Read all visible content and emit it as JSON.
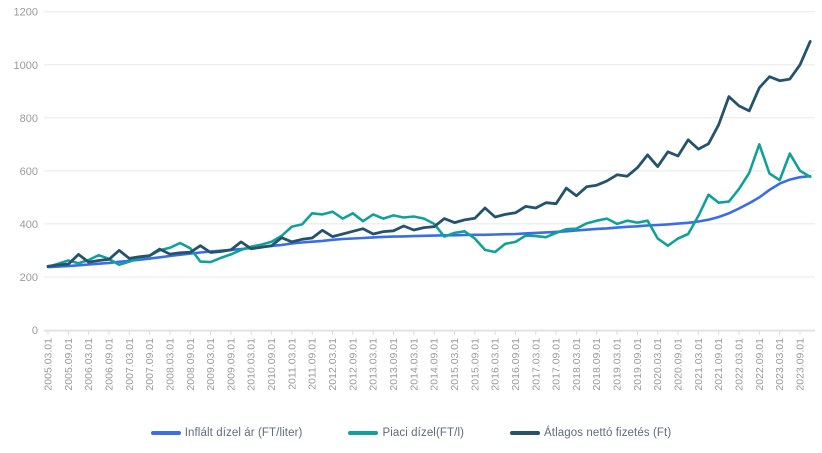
{
  "chart_data": {
    "type": "line",
    "title": "",
    "xlabel": "",
    "ylabel": "",
    "ylim": [
      0,
      1200
    ],
    "y_ticks": [
      0,
      200,
      400,
      600,
      800,
      1000,
      1200
    ],
    "grid": "horizontal",
    "legend_position": "bottom",
    "x_start": "2005.03.01",
    "x_step_months": 3,
    "x_tick_labels": [
      "2005.03.01",
      "2005.09.01",
      "2006.03.01",
      "2006.09.01",
      "2007.03.01",
      "2007.09.01",
      "2008.03.01",
      "2008.09.01",
      "2009.03.01",
      "2009.09.01",
      "2010.03.01",
      "2010.09.01",
      "2011.03.01",
      "2011.09.01",
      "2012.03.01",
      "2012.09.01",
      "2013.03.01",
      "2013.09.01",
      "2014.03.01",
      "2014.09.01",
      "2015.03.01",
      "2015.09.01",
      "2016.03.01",
      "2016.09.01",
      "2017.03.01",
      "2017.09.01",
      "2018.03.01",
      "2018.09.01",
      "2019.03.01",
      "2019.09.01",
      "2020.03.01",
      "2020.09.01",
      "2021.03.01",
      "2021.09.01",
      "2022.03.01",
      "2022.09.01",
      "2023.03.01",
      "2023.09.01"
    ],
    "series": [
      {
        "name": "Inflált dízel ár (FT/liter)",
        "color": "#3a6de6",
        "stroke_width": 2.6,
        "values": [
          237,
          239,
          241,
          244,
          247,
          250,
          253,
          257,
          261,
          265,
          269,
          274,
          279,
          284,
          288,
          292,
          296,
          299,
          302,
          305,
          309,
          313,
          317,
          321,
          326,
          330,
          333,
          336,
          340,
          343,
          345,
          347,
          349,
          351,
          352,
          353,
          354,
          355,
          356,
          357,
          357,
          358,
          359,
          359,
          360,
          361,
          362,
          364,
          366,
          368,
          370,
          372,
          375,
          378,
          381,
          383,
          386,
          389,
          391,
          394,
          396,
          398,
          401,
          404,
          409,
          416,
          426,
          440,
          458,
          478,
          500,
          528,
          552,
          567,
          576,
          580
        ]
      },
      {
        "name": "Piaci dízel(FT/l)",
        "color": "#12a19a",
        "stroke_width": 2.6,
        "values": [
          238,
          250,
          262,
          252,
          264,
          282,
          268,
          246,
          258,
          272,
          280,
          300,
          310,
          328,
          308,
          258,
          256,
          272,
          285,
          302,
          314,
          322,
          333,
          355,
          390,
          398,
          440,
          436,
          446,
          420,
          440,
          410,
          436,
          420,
          432,
          424,
          428,
          420,
          400,
          352,
          366,
          372,
          345,
          302,
          294,
          325,
          332,
          356,
          354,
          350,
          366,
          380,
          382,
          402,
          412,
          420,
          400,
          412,
          405,
          412,
          345,
          318,
          345,
          362,
          430,
          510,
          480,
          484,
          532,
          592,
          700,
          590,
          565,
          665,
          600,
          578
        ]
      },
      {
        "name": "Átlagos nettó fizetés (Ft)",
        "color": "#26536c",
        "stroke_width": 2.8,
        "values": [
          240,
          245,
          248,
          285,
          256,
          262,
          266,
          300,
          270,
          276,
          280,
          305,
          286,
          291,
          293,
          318,
          292,
          296,
          302,
          332,
          306,
          312,
          318,
          348,
          332,
          342,
          347,
          376,
          352,
          362,
          372,
          382,
          362,
          371,
          374,
          392,
          377,
          386,
          390,
          420,
          405,
          415,
          421,
          460,
          426,
          436,
          442,
          466,
          460,
          480,
          476,
          535,
          506,
          540,
          546,
          562,
          585,
          580,
          612,
          660,
          616,
          672,
          656,
          717,
          682,
          702,
          774,
          880,
          845,
          826,
          913,
          955,
          940,
          946,
          1000,
          1088
        ]
      }
    ]
  },
  "colors": {
    "background": "#ffffff",
    "gridline": "#e8e8e8",
    "axis_line": "#dcdcdc",
    "axis_text": "#9b9b9b",
    "legend_text": "#5f6b7a"
  }
}
